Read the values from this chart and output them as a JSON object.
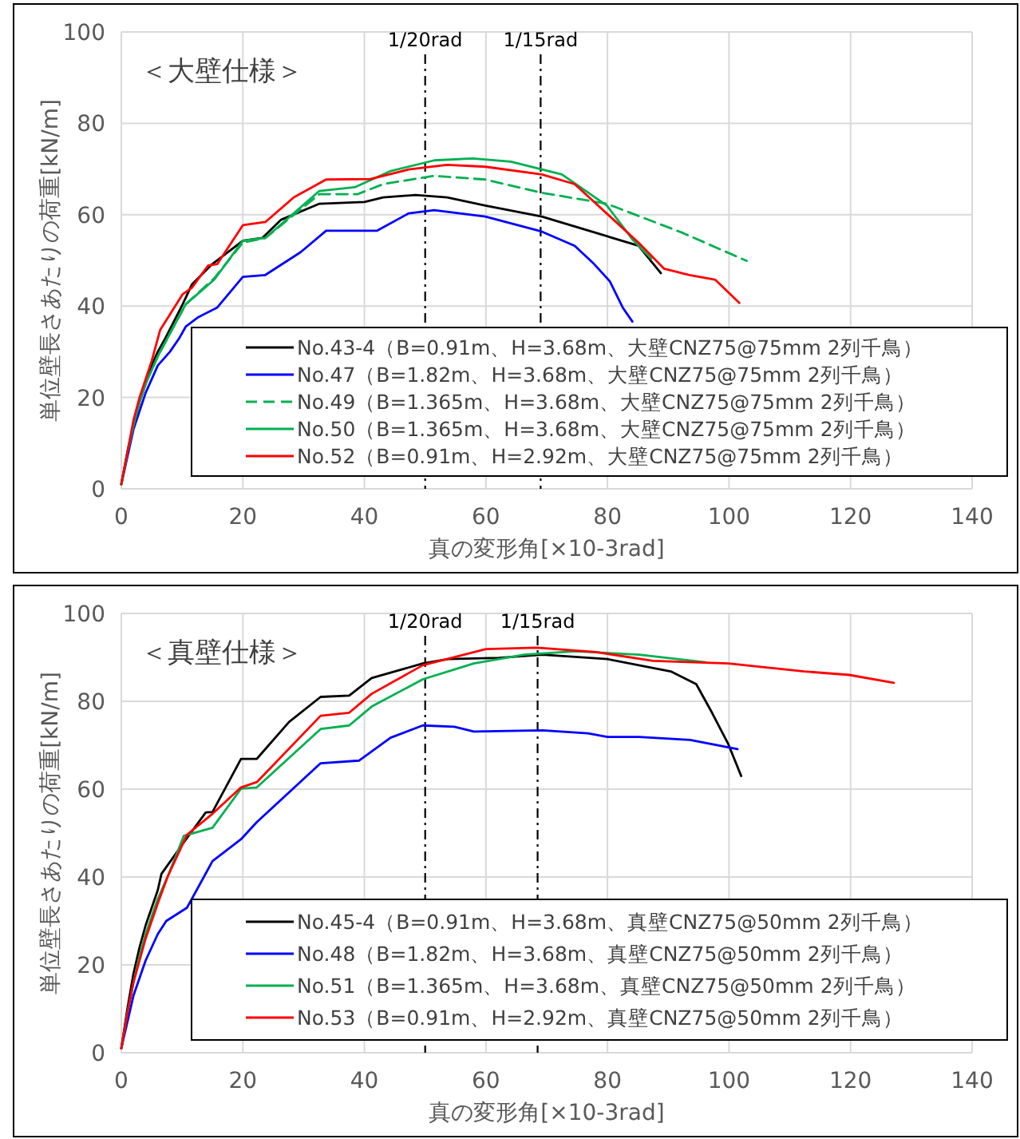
{
  "chart_data": [
    {
      "type": "line",
      "ylabel": "単位壁長さあたりの荷重[kN/m]",
      "xlabel": "真の変形角[×10-3rad]",
      "annotations": [
        "＜大壁仕様＞"
      ],
      "xlim": [
        0,
        140
      ],
      "ylim": [
        0,
        100
      ],
      "xticks": [
        0,
        20,
        40,
        60,
        80,
        100,
        120,
        140
      ],
      "yticks": [
        0,
        20,
        40,
        60,
        80,
        100
      ],
      "grid": true,
      "legend": "bottom",
      "marker": "none",
      "ref_lines": [
        {
          "axis": "x",
          "value": 50,
          "label": "1/20rad",
          "line_style": "dashdot",
          "color": "#000000"
        },
        {
          "axis": "x",
          "value": 69,
          "label": "1/15rad",
          "line_style": "dashdot",
          "color": "#000000"
        }
      ],
      "series": [
        {
          "name": "No.43-4（B=0.91m、H=3.68m、大壁CNZ75@75mm 2列千鳥）",
          "color": "#000000",
          "line_style": "solid",
          "x": [
            0,
            1,
            2,
            3,
            4,
            5,
            6,
            7.1,
            10.1,
            11.6,
            14.8,
            20,
            23.2,
            26.3,
            32.6,
            40,
            43.1,
            48.4,
            53.6,
            59.9,
            69.2,
            79.9,
            85.1,
            88.8
          ],
          "values": [
            1,
            8,
            14,
            19,
            23,
            27,
            30,
            32.6,
            40.4,
            44.7,
            49,
            54.3,
            54.9,
            58.9,
            62.4,
            62.8,
            63.8,
            64.3,
            63.8,
            62,
            59.6,
            55.3,
            53.2,
            47.2
          ]
        },
        {
          "name": "No.47（B=1.82m、H=3.68m、大壁CNZ75@75mm 2列千鳥）",
          "color": "#0000ff",
          "line_style": "solid",
          "x": [
            0,
            2,
            4,
            6,
            8,
            9.5,
            10.6,
            12.7,
            15.8,
            20,
            23.7,
            29.5,
            33.7,
            42.1,
            47.3,
            51.5,
            59.9,
            69.2,
            74.6,
            77.8,
            80.4,
            82.5,
            84.1
          ],
          "values": [
            1,
            13,
            21,
            27,
            30,
            32.9,
            35.5,
            37.6,
            39.7,
            46.4,
            46.8,
            51.8,
            56.5,
            56.5,
            60.3,
            61,
            59.6,
            56.3,
            53.2,
            49.2,
            45.4,
            39.7,
            36.6
          ]
        },
        {
          "name": "No.49（B=1.365m、H=3.68m、大壁CNZ75@75mm 2列千鳥）",
          "color": "#00b050",
          "line_style": "dashed",
          "x": [
            0,
            1,
            2,
            3,
            4,
            5,
            6,
            8,
            10.6,
            15.3,
            20,
            23.7,
            32.6,
            38.9,
            43.1,
            51.5,
            59.9,
            69.2,
            79.9,
            92.4,
            102.9
          ],
          "values": [
            1,
            8,
            14,
            19,
            23,
            26,
            29,
            34,
            40.4,
            46.1,
            53.9,
            54.9,
            64.5,
            64.5,
            66.7,
            68.5,
            67.7,
            64.8,
            62.4,
            56,
            49.9
          ]
        },
        {
          "name": "No.50（B=1.365m、H=3.68m、大壁CNZ75@75mm 2列千鳥）",
          "color": "#00b050",
          "line_style": "solid",
          "x": [
            0,
            1,
            2,
            3,
            4,
            5,
            6,
            8,
            10.6,
            15.3,
            20,
            23.7,
            32.6,
            38.4,
            44.2,
            51.5,
            57.8,
            64.1,
            72.5,
            79.9,
            84.1,
            87.2
          ],
          "values": [
            1,
            8,
            14,
            19,
            23,
            26,
            29,
            34,
            40.4,
            45.8,
            54.3,
            54.9,
            65.2,
            66,
            69.5,
            71.9,
            72.3,
            71.6,
            68.8,
            62,
            54.6,
            50.4
          ]
        },
        {
          "name": "No.52（B=0.91m、H=2.92m、大壁CNZ75@75mm 2列千鳥）",
          "color": "#ff0000",
          "line_style": "solid",
          "x": [
            0,
            1,
            2,
            3,
            4,
            5,
            6.4,
            10.1,
            11.6,
            14.3,
            15.8,
            20,
            23.7,
            28.4,
            33.7,
            41,
            47.3,
            53.6,
            59.9,
            69.2,
            74.6,
            81,
            85.1,
            89.3,
            93.5,
            97.7,
            101.7
          ],
          "values": [
            1,
            8,
            15,
            20,
            24,
            28,
            34.8,
            42.6,
            44,
            48.9,
            49.2,
            57.7,
            58.4,
            63.8,
            67.7,
            67.8,
            69.9,
            70.9,
            70.5,
            68.8,
            66.7,
            58.9,
            53.9,
            48.2,
            46.8,
            45.8,
            40.7
          ]
        }
      ]
    },
    {
      "type": "line",
      "ylabel": "単位壁長さあたりの荷重[kN/m]",
      "xlabel": "真の変形角[×10-3rad]",
      "annotations": [
        "＜真壁仕様＞"
      ],
      "xlim": [
        0,
        140
      ],
      "ylim": [
        0,
        100
      ],
      "xticks": [
        0,
        20,
        40,
        60,
        80,
        100,
        120,
        140
      ],
      "yticks": [
        0,
        20,
        40,
        60,
        80,
        100
      ],
      "grid": true,
      "legend": "bottom",
      "marker": "none",
      "ref_lines": [
        {
          "axis": "x",
          "value": 50,
          "label": "1/20rad",
          "line_style": "dashdot",
          "color": "#000000"
        },
        {
          "axis": "x",
          "value": 68.5,
          "label": "1/15rad",
          "line_style": "dashdot",
          "color": "#000000"
        }
      ],
      "series": [
        {
          "name": "No.45-4（B=0.91m、H=3.68m、真壁CNZ75@50mm 2列千鳥）",
          "color": "#000000",
          "line_style": "solid",
          "x": [
            0,
            1,
            2,
            3,
            4,
            5,
            6,
            6.6,
            10.3,
            13.9,
            15,
            19.7,
            22.3,
            27.6,
            32.8,
            37.5,
            41.2,
            49.6,
            53.8,
            62.1,
            69.3,
            80,
            90.4,
            94.6,
            97.2,
            99.9,
            102
          ],
          "values": [
            1,
            10,
            18,
            24,
            29,
            33,
            37,
            40.7,
            47.9,
            54.7,
            54.8,
            66.9,
            66.9,
            75.3,
            81,
            81.3,
            85.3,
            88.6,
            89.6,
            89.9,
            90.6,
            89.6,
            86.8,
            83.9,
            77.4,
            70.2,
            63
          ]
        },
        {
          "name": "No.48（B=1.82m、H=3.68m、真壁CNZ75@50mm 2列千鳥）",
          "color": "#0000ff",
          "line_style": "solid",
          "x": [
            0,
            2,
            4,
            6,
            7.4,
            10.8,
            15,
            19.7,
            22.3,
            32.8,
            39.1,
            44.3,
            49.6,
            54.8,
            58,
            69.3,
            76.8,
            80,
            85.2,
            93.6,
            101.4
          ],
          "values": [
            1,
            13,
            21,
            27,
            30,
            33,
            43.6,
            48.6,
            52.5,
            65.9,
            66.5,
            71.7,
            74.5,
            74.2,
            73.1,
            73.4,
            72.7,
            71.9,
            71.9,
            71.2,
            69.1
          ]
        },
        {
          "name": "No.51（B=1.365m、H=3.68m、真壁CNZ75@50mm 2列千鳥）",
          "color": "#00b050",
          "line_style": "solid",
          "x": [
            0,
            1,
            2,
            3,
            4,
            5,
            6,
            7.6,
            10.3,
            15,
            19.7,
            22.3,
            32.8,
            37.5,
            41.2,
            49.6,
            58,
            66.3,
            74.7,
            85.2,
            96.1
          ],
          "values": [
            1,
            9,
            16,
            22,
            27,
            31,
            35,
            40,
            49.4,
            51.2,
            60.1,
            60.4,
            73.7,
            74.5,
            78.8,
            85,
            88.6,
            90.6,
            91.4,
            90.6,
            88.9
          ]
        },
        {
          "name": "No.53（B=0.91m、H=2.92m、真壁CNZ75@50mm 2列千鳥）",
          "color": "#ff0000",
          "line_style": "solid",
          "x": [
            0,
            1,
            2,
            3,
            4,
            5,
            6,
            7.6,
            10.8,
            15,
            19.7,
            22.3,
            32.8,
            37.5,
            41.2,
            49.6,
            60,
            68.4,
            78.1,
            87.5,
            99.9,
            112.4,
            119.8,
            127.1
          ],
          "values": [
            1,
            9,
            16,
            21,
            26,
            30,
            34,
            40,
            49.6,
            54.4,
            60.4,
            61.6,
            76.7,
            77.4,
            81.7,
            88.2,
            91.9,
            92.2,
            91.2,
            89.2,
            88.6,
            86.8,
            86,
            84.2
          ]
        }
      ]
    }
  ]
}
